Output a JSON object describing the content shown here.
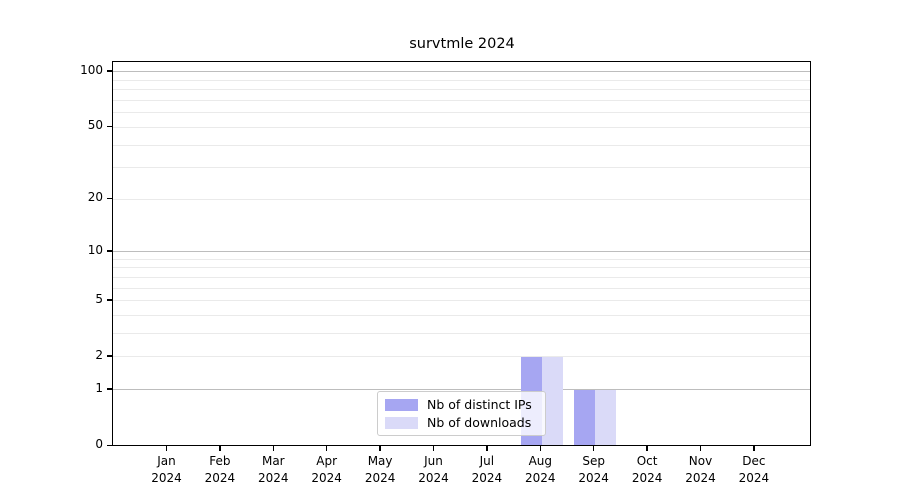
{
  "title": "survtmle 2024",
  "chart_data": {
    "type": "bar",
    "title": "survtmle 2024",
    "categories": [
      "Jan",
      "Feb",
      "Mar",
      "Apr",
      "May",
      "Jun",
      "Jul",
      "Aug",
      "Sep",
      "Oct",
      "Nov",
      "Dec"
    ],
    "x_tick_year": "2024",
    "series": [
      {
        "name": "Nb of distinct IPs",
        "color": "#a6a6f2",
        "values": [
          0,
          0,
          0,
          0,
          0,
          0,
          0,
          2,
          1,
          0,
          0,
          0
        ]
      },
      {
        "name": "Nb of downloads",
        "color": "#dadaf8",
        "values": [
          0,
          0,
          0,
          0,
          0,
          0,
          0,
          2,
          1,
          0,
          0,
          0
        ]
      }
    ],
    "y_axis": {
      "scale": "log1p",
      "ylim": [
        0,
        113
      ],
      "tick_values": [
        0,
        1,
        2,
        5,
        10,
        20,
        50,
        100
      ],
      "tick_labels": [
        "0",
        "1",
        "2",
        "5",
        "10",
        "20",
        "50",
        "100"
      ],
      "major_gridlines": [
        1,
        10,
        100
      ],
      "minor_gridlines": [
        2,
        3,
        4,
        5,
        6,
        7,
        8,
        9,
        20,
        30,
        40,
        50,
        60,
        70,
        80,
        90
      ]
    },
    "legend": {
      "position": "inside lower center",
      "entries": [
        "Nb of distinct IPs",
        "Nb of downloads"
      ]
    },
    "colors": {
      "major_grid": "#bdbdbd",
      "minor_grid": "#eaeaea",
      "spine": "#000000",
      "background": "#ffffff"
    }
  }
}
